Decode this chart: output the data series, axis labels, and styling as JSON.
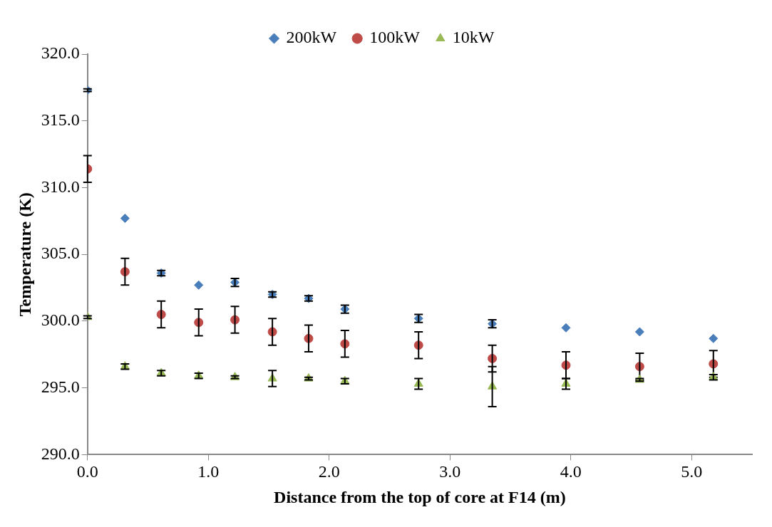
{
  "chart_data": {
    "type": "scatter",
    "xlabel": "Distance from the top of core at F14 (m)",
    "ylabel": "Temperature (K)",
    "x": [
      0,
      0.31,
      0.61,
      0.92,
      1.22,
      1.53,
      1.83,
      2.13,
      2.74,
      3.35,
      3.96,
      4.57,
      5.18
    ],
    "series": [
      {
        "name": "200kW",
        "color": "#4a7ebb",
        "marker": "diamond",
        "values": [
          317.3,
          307.7,
          303.6,
          302.7,
          302.9,
          302.0,
          301.7,
          300.9,
          300.2,
          299.8,
          299.5,
          299.2,
          298.7
        ],
        "errors": [
          0.1,
          null,
          0.2,
          null,
          0.3,
          0.2,
          0.2,
          0.3,
          0.3,
          0.3,
          null,
          null,
          null
        ]
      },
      {
        "name": "100kW",
        "color": "#be4b48",
        "marker": "circle",
        "values": [
          311.4,
          303.7,
          300.5,
          299.9,
          300.1,
          299.2,
          298.7,
          298.3,
          298.2,
          297.2,
          296.7,
          296.6,
          296.8
        ],
        "errors": [
          1.0,
          1.0,
          1.0,
          1.0,
          1.0,
          1.0,
          1.0,
          1.0,
          1.0,
          1.0,
          1.0,
          1.0,
          1.0
        ]
      },
      {
        "name": "10kW",
        "color": "#98b954",
        "marker": "triangle",
        "values": [
          300.3,
          296.6,
          296.1,
          295.9,
          295.8,
          295.7,
          295.7,
          295.5,
          295.3,
          295.1,
          295.3,
          295.6,
          295.8
        ],
        "errors": [
          0.1,
          0.2,
          0.2,
          0.2,
          0.1,
          0.6,
          0.1,
          0.2,
          0.4,
          1.5,
          0.4,
          0.1,
          0.2
        ]
      }
    ],
    "xlim": [
      0,
      5.5
    ],
    "xticks": [
      {
        "value": 0,
        "label": "0.0"
      },
      {
        "value": 1,
        "label": "1.0"
      },
      {
        "value": 2,
        "label": "2.0"
      },
      {
        "value": 3,
        "label": "3.0"
      },
      {
        "value": 4,
        "label": "4.0"
      },
      {
        "value": 5,
        "label": "5.0"
      }
    ],
    "ylim": [
      290,
      320
    ],
    "yticks": [
      {
        "value": 290,
        "label": "290.0"
      },
      {
        "value": 295,
        "label": "295.0"
      },
      {
        "value": 300,
        "label": "300.0"
      },
      {
        "value": 305,
        "label": "305.0"
      },
      {
        "value": 310,
        "label": "310.0"
      },
      {
        "value": 315,
        "label": "315.0"
      },
      {
        "value": 320,
        "label": "320.0"
      }
    ],
    "grid": false,
    "legend": "top"
  }
}
